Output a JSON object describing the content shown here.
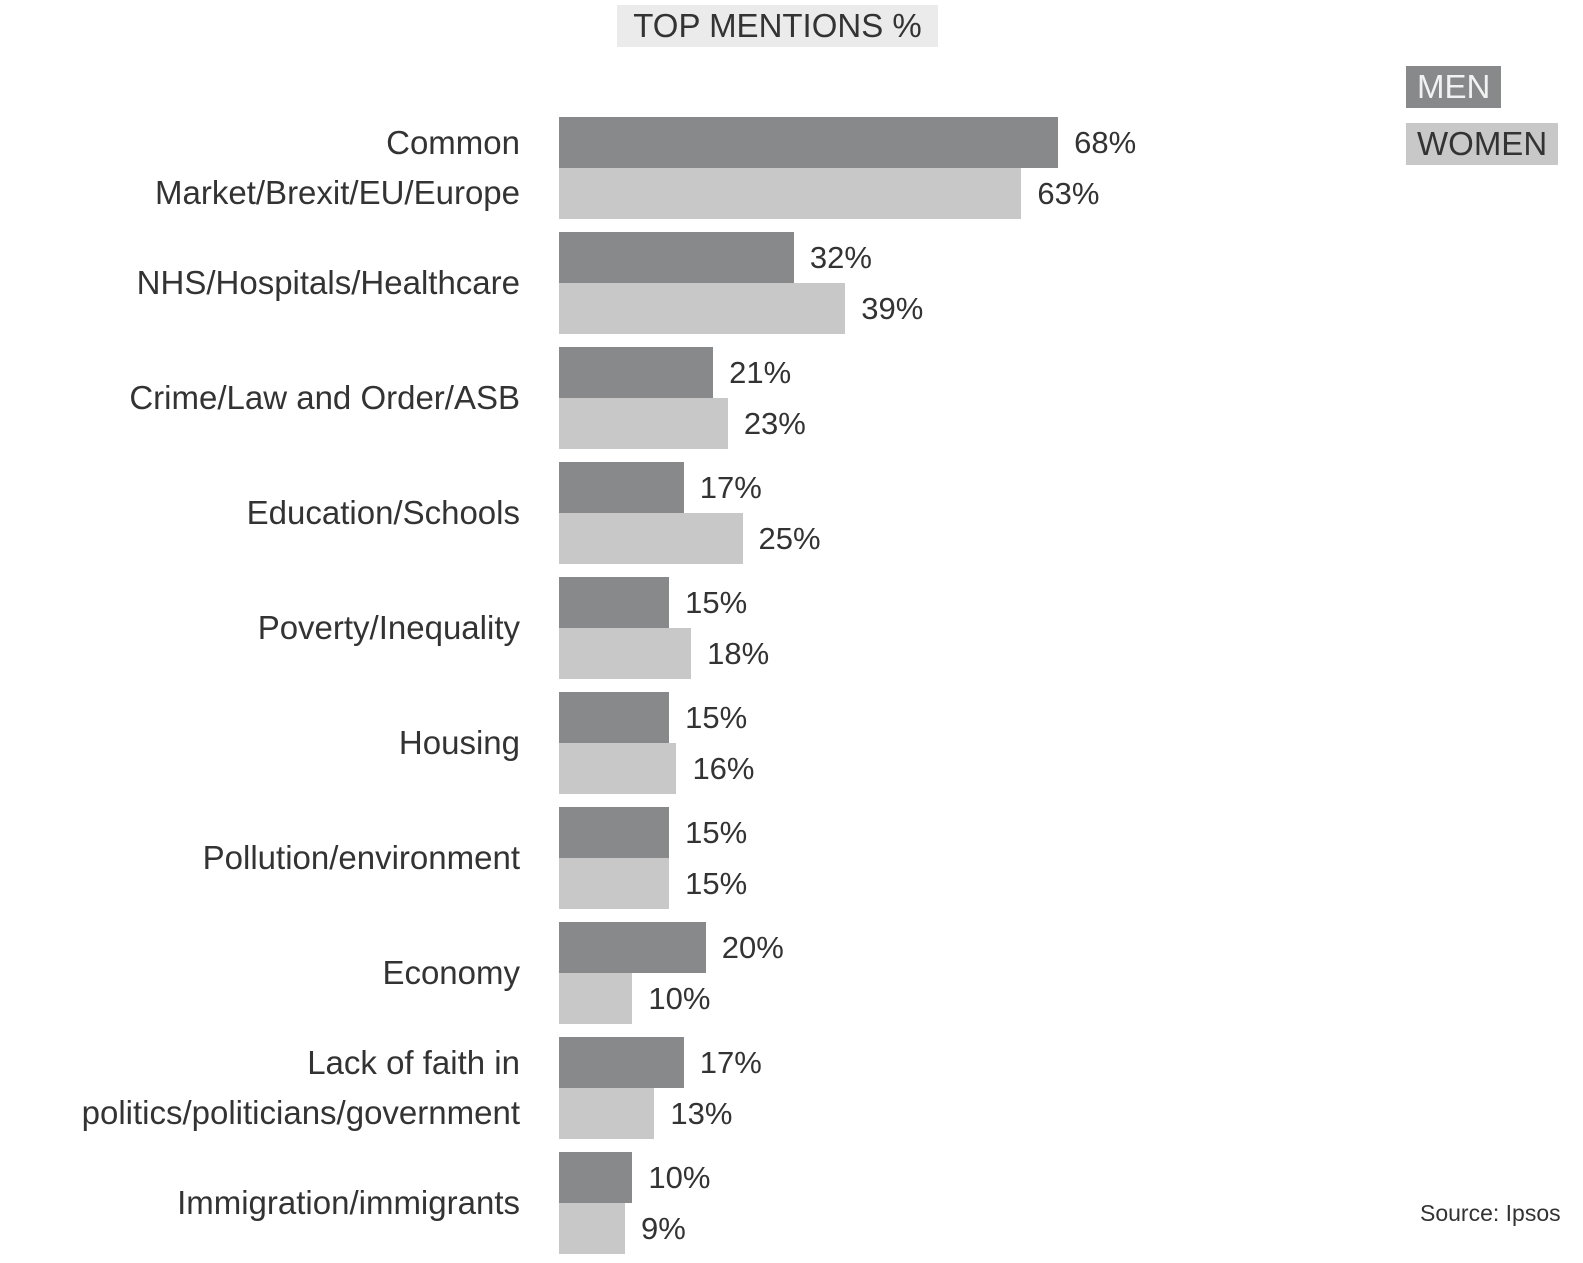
{
  "chart_data": {
    "type": "bar",
    "orientation": "horizontal",
    "title": "TOP MENTIONS %",
    "categories": [
      "Common\nMarket/Brexit/EU/Europe",
      "NHS/Hospitals/Healthcare",
      "Crime/Law and Order/ASB",
      "Education/Schools",
      "Poverty/Inequality",
      "Housing",
      "Pollution/environment",
      "Economy",
      "Lack of faith in\npolitics/politicians/government",
      "Immigration/immigrants"
    ],
    "series": [
      {
        "name": "MEN",
        "color": "#87898b",
        "values": [
          68,
          32,
          21,
          17,
          15,
          15,
          15,
          20,
          17,
          10
        ],
        "value_labels": [
          "68%",
          "32%",
          "21%",
          "17%",
          "15%",
          "15%",
          "15%",
          "20%",
          "17%",
          "10%"
        ]
      },
      {
        "name": "WOMEN",
        "color": "#c8c8c8",
        "values": [
          63,
          39,
          23,
          25,
          18,
          16,
          15,
          10,
          13,
          9
        ],
        "value_labels": [
          "63%",
          "39%",
          "23%",
          "25%",
          "18%",
          "16%",
          "15%",
          "10%",
          "13%",
          "9%"
        ]
      }
    ],
    "source": "Source: Ipsos"
  }
}
